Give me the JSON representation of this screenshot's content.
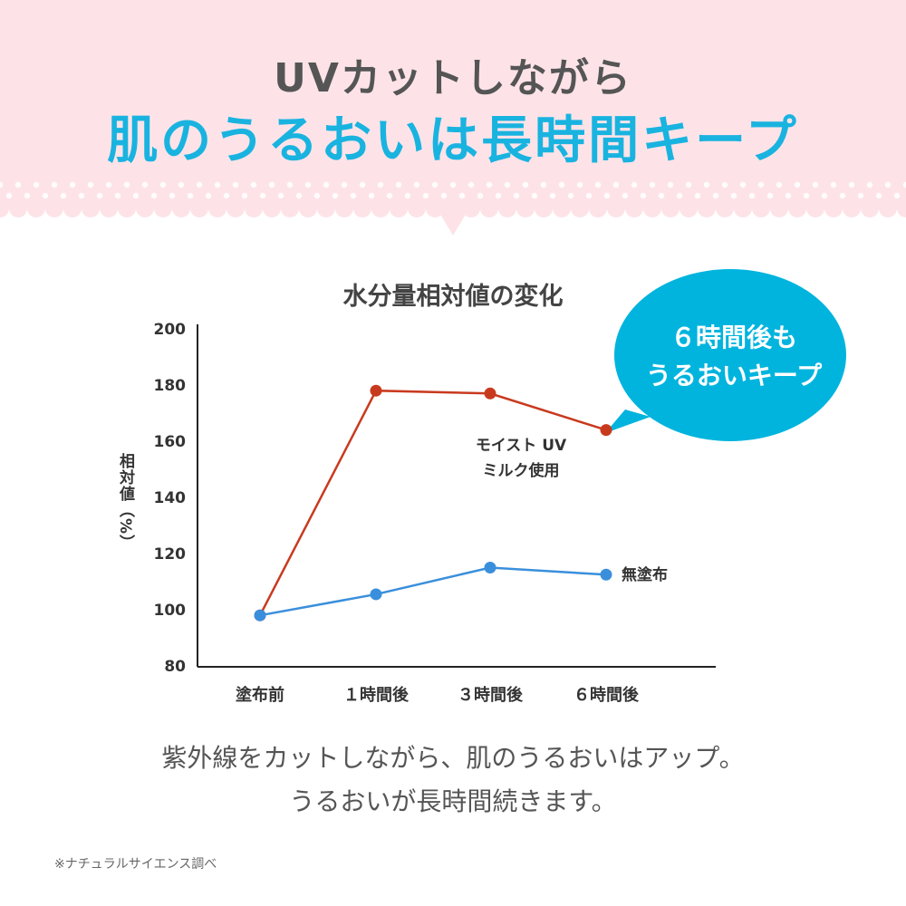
{
  "header": {
    "line1": "UVカットしながら",
    "line2": "肌のうるおいは長時間キープ"
  },
  "bubble": {
    "line1": "６時間後も",
    "line2": "うるおいキープ"
  },
  "chart_data": {
    "type": "line",
    "title": "水分量相対値の変化",
    "ylabel": "相対値（%）",
    "xlabel": "",
    "categories": [
      "塗布前",
      "１時間後",
      "３時間後",
      "６時間後"
    ],
    "ylim": [
      80,
      200
    ],
    "yticks": [
      80,
      100,
      120,
      140,
      160,
      180,
      200
    ],
    "series": [
      {
        "name": "モイスト UV ミルク使用",
        "values": [
          98,
          178,
          177,
          164
        ],
        "color": "#c83a1e"
      },
      {
        "name": "無塗布",
        "values": [
          98,
          105.5,
          115,
          112.5
        ],
        "color": "#3a8fdc"
      }
    ],
    "legend": "inline",
    "grid": false
  },
  "series_labels": {
    "milk_line1": "モイスト UV",
    "milk_line2": "ミルク使用",
    "none": "無塗布"
  },
  "caption": {
    "line1": "紫外線をカットしながら、肌のうるおいはアップ。",
    "line2": "うるおいが長時間続きます。"
  },
  "footnote": "※ナチュラルサイエンス調べ",
  "colors": {
    "header_bg": "#fde3e8",
    "title_accent": "#19b3e0",
    "bubble": "#00b4de",
    "milk_series": "#c83a1e",
    "none_series": "#3a8fdc"
  }
}
